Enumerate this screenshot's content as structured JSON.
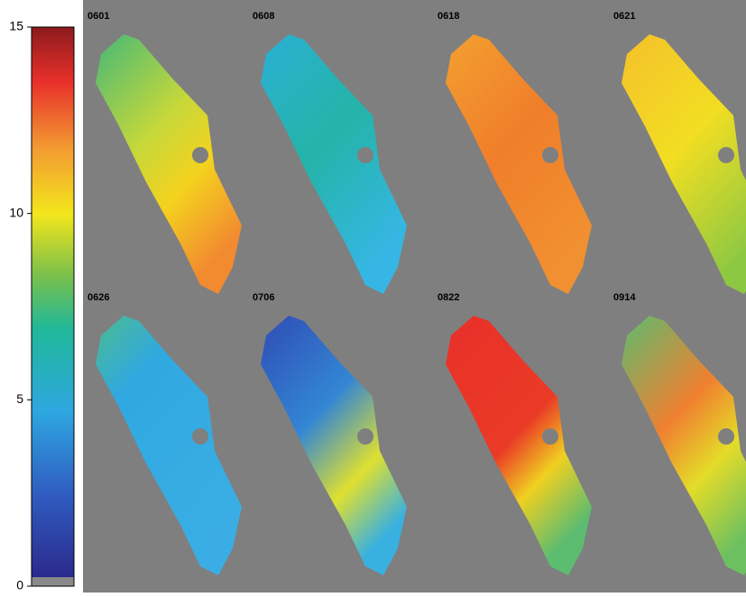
{
  "colorbar": {
    "lim": [
      0,
      15
    ],
    "ticks": [
      0,
      5,
      10,
      15
    ]
  },
  "panels": [
    {
      "label": "0601"
    },
    {
      "label": "0608"
    },
    {
      "label": "0618"
    },
    {
      "label": "0621"
    },
    {
      "label": "0626"
    },
    {
      "label": "0706"
    },
    {
      "label": "0822"
    },
    {
      "label": "0914"
    }
  ]
}
